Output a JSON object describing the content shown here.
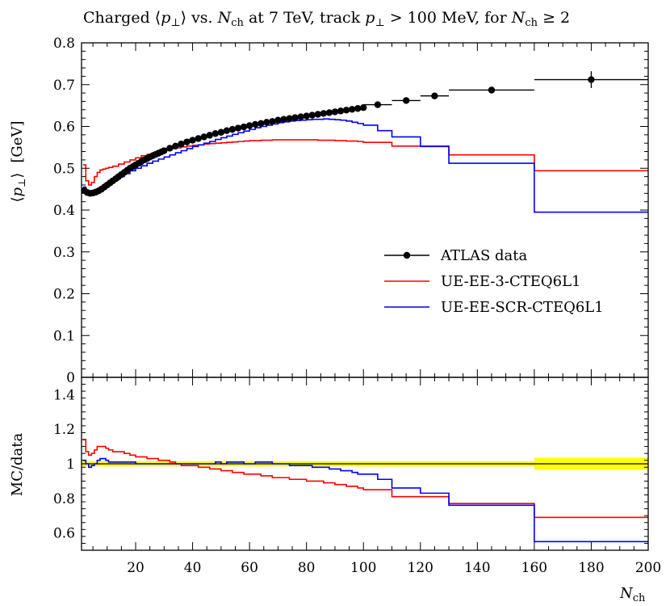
{
  "chart_data": {
    "type": "line",
    "title_parts": {
      "prefix": "Charged ⟨",
      "pt": "p",
      "perp": "⊥",
      "mid1": "⟩ vs. ",
      "n": "N",
      "ch": "ch",
      "mid2": " at 7 TeV, track ",
      "mid3": " > 100 MeV, for ",
      "suffix": " ≥ 2"
    },
    "ylabel_main": {
      "lang": "⟨",
      "p": "p",
      "perp": "⊥",
      "rang": "⟩",
      "unit": "[GeV]"
    },
    "ylabel_ratio": "MC/data",
    "xlabel": {
      "n": "N",
      "ch": "ch"
    },
    "xlim": [
      1,
      200
    ],
    "ylim_main": [
      0,
      0.8
    ],
    "ylim_ratio": [
      0.5,
      1.5
    ],
    "xticks": [
      "20",
      "40",
      "60",
      "80",
      "100",
      "120",
      "140",
      "160",
      "180",
      "200"
    ],
    "yticks_main": [
      "0",
      "0.1",
      "0.2",
      "0.3",
      "0.4",
      "0.5",
      "0.6",
      "0.7",
      "0.8"
    ],
    "yticks_ratio": [
      "0.6",
      "0.8",
      "1",
      "1.2",
      "1.4"
    ],
    "legend_position": "center-right",
    "series": [
      {
        "name": "ATLAS data",
        "color": "#000000",
        "style": "points",
        "x": [
          2,
          3,
          4,
          5,
          6,
          7,
          8,
          9,
          10,
          11,
          12,
          13,
          14,
          15,
          16,
          17,
          18,
          19,
          20,
          21,
          22,
          23,
          24,
          25,
          26,
          27,
          28,
          29,
          30,
          32,
          34,
          36,
          38,
          40,
          42,
          44,
          46,
          48,
          50,
          52,
          54,
          56,
          58,
          60,
          62,
          64,
          66,
          68,
          70,
          72,
          74,
          76,
          78,
          80,
          82,
          84,
          86,
          88,
          90,
          92,
          94,
          96,
          98,
          100,
          105,
          115,
          125,
          145,
          180
        ],
        "xerr": [
          0.5,
          0.5,
          0.5,
          0.5,
          0.5,
          0.5,
          0.5,
          0.5,
          0.5,
          0.5,
          0.5,
          0.5,
          0.5,
          0.5,
          0.5,
          0.5,
          0.5,
          0.5,
          0.5,
          0.5,
          0.5,
          0.5,
          0.5,
          0.5,
          0.5,
          0.5,
          0.5,
          0.5,
          0.5,
          1,
          1,
          1,
          1,
          1,
          1,
          1,
          1,
          1,
          1,
          1,
          1,
          1,
          1,
          1,
          1,
          1,
          1,
          1,
          1,
          1,
          1,
          1,
          1,
          1,
          1,
          1,
          1,
          1,
          1,
          1,
          1,
          1,
          1,
          1,
          5,
          5,
          5,
          15,
          20
        ],
        "y": [
          0.447,
          0.442,
          0.44,
          0.441,
          0.443,
          0.446,
          0.45,
          0.455,
          0.46,
          0.465,
          0.47,
          0.475,
          0.48,
          0.485,
          0.49,
          0.495,
          0.5,
          0.504,
          0.508,
          0.512,
          0.516,
          0.52,
          0.523,
          0.527,
          0.53,
          0.533,
          0.536,
          0.539,
          0.542,
          0.548,
          0.553,
          0.558,
          0.563,
          0.567,
          0.571,
          0.575,
          0.579,
          0.583,
          0.586,
          0.59,
          0.593,
          0.596,
          0.599,
          0.602,
          0.605,
          0.607,
          0.61,
          0.612,
          0.615,
          0.617,
          0.619,
          0.621,
          0.623,
          0.625,
          0.627,
          0.629,
          0.631,
          0.633,
          0.635,
          0.637,
          0.639,
          0.641,
          0.643,
          0.645,
          0.652,
          0.662,
          0.673,
          0.687,
          0.712
        ],
        "yerr": [
          0.002,
          0.002,
          0.002,
          0.002,
          0.002,
          0.002,
          0.002,
          0.002,
          0.002,
          0.002,
          0.002,
          0.002,
          0.002,
          0.002,
          0.002,
          0.002,
          0.002,
          0.002,
          0.002,
          0.002,
          0.002,
          0.002,
          0.002,
          0.002,
          0.002,
          0.002,
          0.002,
          0.002,
          0.002,
          0.002,
          0.002,
          0.002,
          0.002,
          0.002,
          0.002,
          0.002,
          0.002,
          0.002,
          0.002,
          0.002,
          0.002,
          0.002,
          0.002,
          0.002,
          0.002,
          0.002,
          0.002,
          0.002,
          0.002,
          0.002,
          0.002,
          0.002,
          0.002,
          0.002,
          0.002,
          0.002,
          0.002,
          0.002,
          0.002,
          0.002,
          0.002,
          0.002,
          0.002,
          0.002,
          0.004,
          0.005,
          0.006,
          0.008,
          0.02
        ]
      },
      {
        "name": "UE-EE-3-CTEQ6L1",
        "color": "#ff0000",
        "style": "step",
        "edges": [
          1.5,
          2.5,
          3.5,
          4.5,
          5.5,
          6.5,
          7.5,
          8.5,
          9.5,
          10.5,
          12,
          14,
          16,
          18,
          20,
          22,
          24,
          26,
          28,
          30,
          32,
          34,
          36,
          38,
          40,
          42,
          44,
          46,
          48,
          50,
          52,
          54,
          56,
          58,
          60,
          62,
          64,
          66,
          68,
          70,
          72,
          74,
          76,
          78,
          80,
          82,
          84,
          86,
          88,
          90,
          92,
          94,
          96,
          98,
          100,
          110,
          130,
          160,
          200
        ],
        "y": [
          0.508,
          0.47,
          0.46,
          0.466,
          0.48,
          0.49,
          0.496,
          0.498,
          0.5,
          0.502,
          0.505,
          0.51,
          0.515,
          0.52,
          0.525,
          0.53,
          0.533,
          0.537,
          0.54,
          0.544,
          0.547,
          0.549,
          0.551,
          0.553,
          0.555,
          0.556,
          0.558,
          0.559,
          0.56,
          0.561,
          0.562,
          0.563,
          0.564,
          0.565,
          0.566,
          0.566,
          0.567,
          0.567,
          0.568,
          0.568,
          0.568,
          0.568,
          0.568,
          0.568,
          0.568,
          0.568,
          0.567,
          0.567,
          0.567,
          0.566,
          0.566,
          0.565,
          0.565,
          0.564,
          0.562,
          0.553,
          0.532,
          0.494
        ]
      },
      {
        "name": "UE-EE-SCR-CTEQ6L1",
        "color": "#0000ff",
        "style": "step",
        "edges": [
          1.5,
          2.5,
          3.5,
          4.5,
          5.5,
          6.5,
          7.5,
          8.5,
          9.5,
          10.5,
          12,
          14,
          16,
          18,
          20,
          22,
          24,
          26,
          28,
          30,
          32,
          34,
          36,
          38,
          40,
          42,
          44,
          46,
          48,
          50,
          52,
          54,
          56,
          58,
          60,
          62,
          64,
          66,
          68,
          70,
          72,
          74,
          76,
          78,
          80,
          82,
          84,
          86,
          88,
          90,
          92,
          94,
          96,
          98,
          100,
          105,
          110,
          120,
          130,
          160,
          200
        ],
        "y": [
          0.455,
          0.445,
          0.438,
          0.437,
          0.44,
          0.445,
          0.45,
          0.456,
          0.462,
          0.467,
          0.472,
          0.48,
          0.487,
          0.494,
          0.5,
          0.506,
          0.512,
          0.517,
          0.522,
          0.527,
          0.532,
          0.537,
          0.542,
          0.547,
          0.552,
          0.556,
          0.56,
          0.564,
          0.569,
          0.573,
          0.577,
          0.581,
          0.585,
          0.589,
          0.593,
          0.597,
          0.6,
          0.603,
          0.606,
          0.609,
          0.611,
          0.613,
          0.614,
          0.615,
          0.616,
          0.617,
          0.617,
          0.618,
          0.617,
          0.616,
          0.615,
          0.613,
          0.61,
          0.607,
          0.603,
          0.59,
          0.575,
          0.552,
          0.512,
          0.395
        ]
      }
    ],
    "ratio": {
      "band_color": "#ffff00",
      "band": [
        {
          "x": [
            1,
            160
          ],
          "lo": 0.985,
          "hi": 1.015
        },
        {
          "x": [
            160,
            200
          ],
          "lo": 0.965,
          "hi": 1.035
        }
      ],
      "series": [
        {
          "name": "UE-EE-3-CTEQ6L1",
          "color": "#ff0000",
          "edges": [
            1.5,
            2.5,
            3.5,
            4.5,
            5.5,
            6.5,
            7.5,
            8.5,
            9.5,
            10.5,
            12,
            14,
            16,
            18,
            20,
            22,
            24,
            26,
            28,
            30,
            32,
            34,
            36,
            38,
            40,
            42,
            44,
            46,
            48,
            50,
            52,
            54,
            56,
            58,
            60,
            62,
            64,
            66,
            68,
            70,
            72,
            74,
            76,
            78,
            80,
            82,
            84,
            86,
            88,
            90,
            92,
            94,
            96,
            98,
            100,
            110,
            130,
            160,
            200
          ],
          "y": [
            1.14,
            1.07,
            1.05,
            1.06,
            1.08,
            1.1,
            1.1,
            1.1,
            1.09,
            1.08,
            1.07,
            1.07,
            1.06,
            1.05,
            1.04,
            1.04,
            1.03,
            1.03,
            1.02,
            1.02,
            1.01,
            1.0,
            0.99,
            0.99,
            0.99,
            0.98,
            0.98,
            0.97,
            0.97,
            0.96,
            0.96,
            0.95,
            0.95,
            0.94,
            0.94,
            0.94,
            0.93,
            0.93,
            0.92,
            0.92,
            0.92,
            0.91,
            0.91,
            0.91,
            0.9,
            0.9,
            0.9,
            0.89,
            0.89,
            0.88,
            0.88,
            0.87,
            0.87,
            0.86,
            0.85,
            0.81,
            0.77,
            0.69
          ]
        },
        {
          "name": "UE-EE-SCR-CTEQ6L1",
          "color": "#0000ff",
          "edges": [
            1.5,
            2.5,
            3.5,
            4.5,
            5.5,
            6.5,
            7.5,
            8.5,
            9.5,
            10.5,
            12,
            14,
            16,
            18,
            20,
            22,
            24,
            26,
            28,
            30,
            32,
            34,
            36,
            38,
            40,
            42,
            44,
            46,
            48,
            50,
            52,
            54,
            56,
            58,
            60,
            62,
            64,
            66,
            68,
            70,
            72,
            74,
            76,
            78,
            80,
            82,
            84,
            86,
            88,
            90,
            92,
            94,
            96,
            98,
            100,
            105,
            110,
            120,
            130,
            160,
            200
          ],
          "y": [
            1.02,
            1.0,
            0.98,
            0.99,
            1.0,
            1.02,
            1.03,
            1.03,
            1.02,
            1.01,
            1.01,
            1.01,
            1.01,
            1.01,
            1.0,
            1.0,
            1.0,
            1.0,
            1.0,
            1.0,
            1.0,
            1.0,
            1.0,
            1.0,
            1.0,
            1.0,
            1.0,
            1.0,
            1.01,
            1.0,
            1.01,
            1.01,
            1.01,
            1.0,
            1.0,
            1.01,
            1.01,
            1.01,
            1.0,
            1.0,
            1.0,
            0.99,
            0.99,
            0.99,
            0.99,
            0.98,
            0.98,
            0.98,
            0.97,
            0.97,
            0.96,
            0.96,
            0.95,
            0.94,
            0.94,
            0.91,
            0.86,
            0.83,
            0.76,
            0.55
          ]
        }
      ]
    }
  }
}
